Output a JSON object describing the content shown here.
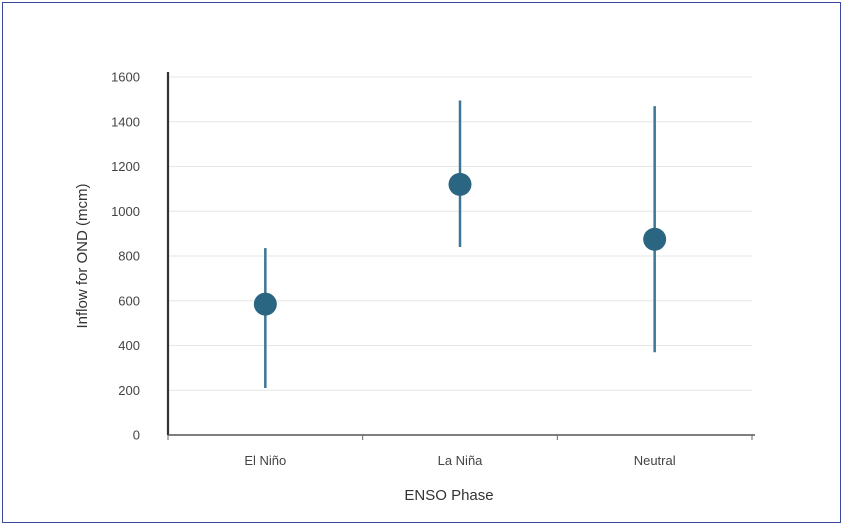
{
  "chart_data": {
    "type": "scatter",
    "subtype": "point-range",
    "title": "",
    "xlabel": "ENSO Phase",
    "ylabel": "Inflow for OND (mcm)",
    "categories": [
      "El Niño",
      "La Niña",
      "Neutral"
    ],
    "values": [
      585,
      1120,
      875
    ],
    "low": [
      210,
      840,
      370
    ],
    "high": [
      835,
      1495,
      1470
    ],
    "ylim": [
      0,
      1600
    ],
    "yticks": [
      "0",
      "200",
      "400",
      "600",
      "800",
      "1000",
      "1200",
      "1400",
      "1600"
    ],
    "grid": "horizontal",
    "legend": "none",
    "colors": {
      "marker": "#2a6582",
      "whisker": "#3d7694",
      "axis": "#333333",
      "grid": "#e6e6e6",
      "frame": "#3b4a9e"
    }
  }
}
